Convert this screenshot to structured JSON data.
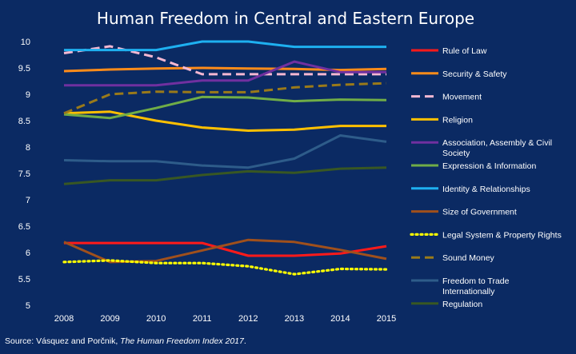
{
  "chart_data": {
    "type": "line",
    "title": "Human Freedom in Central and Eastern Europe",
    "categories": [
      "2008",
      "2009",
      "2010",
      "2011",
      "2012",
      "2013",
      "2014",
      "2015"
    ],
    "y_ticks": [
      "5",
      "5.5",
      "6",
      "6.5",
      "7",
      "7.5",
      "8",
      "8.5",
      "9",
      "9.5",
      "10"
    ],
    "ylim": [
      5,
      10
    ],
    "grid": false,
    "legend_position": "right",
    "series": [
      {
        "name": "Rule of Law",
        "color": "#ff1a1a",
        "dash": "solid",
        "values": [
          6.18,
          6.18,
          6.18,
          6.18,
          5.94,
          5.94,
          5.98,
          6.12
        ]
      },
      {
        "name": "Security & Safety",
        "color": "#ff8c1a",
        "dash": "solid",
        "values": [
          9.44,
          9.47,
          9.49,
          9.5,
          9.49,
          9.48,
          9.46,
          9.48
        ]
      },
      {
        "name": "Movement",
        "color": "#f5b8d2",
        "dash": "dashed",
        "values": [
          9.78,
          9.91,
          9.7,
          9.38,
          9.38,
          9.38,
          9.38,
          9.38
        ]
      },
      {
        "name": "Religion",
        "color": "#ffc000",
        "dash": "solid",
        "values": [
          8.64,
          8.67,
          8.5,
          8.37,
          8.31,
          8.33,
          8.4,
          8.4
        ]
      },
      {
        "name": "Association, Assembly & Civil Society",
        "color": "#7030a0",
        "dash": "solid",
        "values": [
          9.17,
          9.17,
          9.17,
          9.26,
          9.26,
          9.62,
          9.42,
          9.42
        ]
      },
      {
        "name": "Expression & Information",
        "color": "#70ad47",
        "dash": "solid",
        "values": [
          8.62,
          8.55,
          8.74,
          8.95,
          8.94,
          8.87,
          8.9,
          8.89
        ]
      },
      {
        "name": "Identity & Relationships",
        "color": "#1eb0f0",
        "dash": "solid",
        "values": [
          9.84,
          9.84,
          9.84,
          10.0,
          10.0,
          9.9,
          9.9,
          9.9
        ]
      },
      {
        "name": "Size of Government",
        "color": "#a0501c",
        "dash": "solid",
        "values": [
          6.2,
          5.82,
          5.84,
          6.04,
          6.24,
          6.2,
          6.05,
          5.88
        ]
      },
      {
        "name": "Legal System & Property Rights",
        "color": "#ffff00",
        "dash": "dotted",
        "values": [
          5.82,
          5.85,
          5.8,
          5.8,
          5.74,
          5.59,
          5.69,
          5.68
        ]
      },
      {
        "name": "Sound Money",
        "color": "#9a7a1a",
        "dash": "dashed",
        "values": [
          8.64,
          9.0,
          9.05,
          9.04,
          9.04,
          9.13,
          9.18,
          9.21
        ]
      },
      {
        "name": "Freedom to Trade Internationally",
        "color": "#2e5c8a",
        "dash": "solid",
        "values": [
          7.75,
          7.73,
          7.73,
          7.65,
          7.61,
          7.78,
          8.22,
          8.1
        ]
      },
      {
        "name": "Regulation",
        "color": "#385723",
        "dash": "solid",
        "values": [
          7.3,
          7.37,
          7.37,
          7.47,
          7.54,
          7.51,
          7.59,
          7.61
        ]
      }
    ],
    "source_prefix": "Source: Vásquez and Porčnik, ",
    "source_italic": "The Human Freedom Index 2017",
    "source_suffix": "."
  }
}
